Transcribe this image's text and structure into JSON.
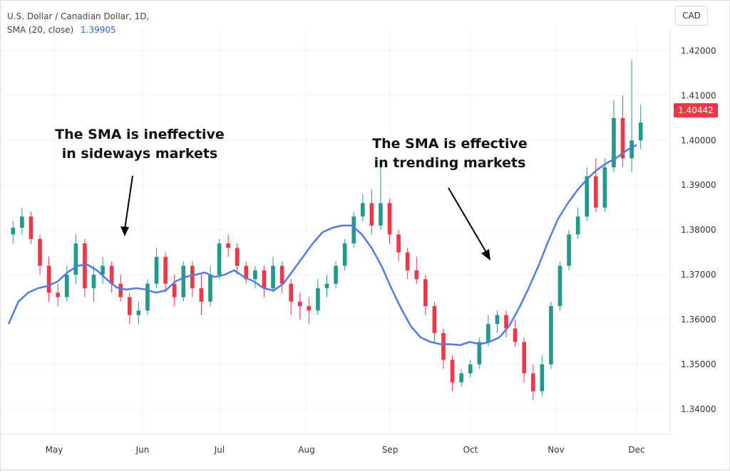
{
  "header": {
    "symbol_line": "U.S. Dollar / Canadian Dollar, 1D,",
    "indicator_label": "SMA (20, close)",
    "indicator_value": "1.39905"
  },
  "currency_button": "CAD",
  "last_price_badge": "1.40442",
  "annotations": {
    "left": [
      "The SMA is ineffective",
      "in sideways markets"
    ],
    "right": [
      "The SMA is effective",
      "in trending markets"
    ]
  },
  "colors": {
    "up": "#22998a",
    "down": "#f23645",
    "sma": "#4f7ce9",
    "grid": "#f0f2f5",
    "axis_text": "#333333"
  },
  "chart_data": {
    "type": "candlestick",
    "title": "U.S. Dollar / Canadian Dollar, 1D",
    "y_axis_label": "CAD",
    "ylim": [
      1.336,
      1.425
    ],
    "y_ticks": [
      "1.42000",
      "1.41000",
      "1.40000",
      "1.39000",
      "1.38000",
      "1.37000",
      "1.36000",
      "1.35000",
      "1.34000"
    ],
    "x_ticks": [
      "May",
      "Jun",
      "Jul",
      "Aug",
      "Sep",
      "Oct",
      "Nov",
      "Dec"
    ],
    "last_price": 1.40442,
    "sma": {
      "name": "SMA (20, close)",
      "last_value": 1.39905,
      "values": [
        1.359,
        1.364,
        1.366,
        1.367,
        1.3675,
        1.3685,
        1.3705,
        1.372,
        1.3723,
        1.371,
        1.369,
        1.3672,
        1.3667,
        1.367,
        1.3667,
        1.366,
        1.3665,
        1.3685,
        1.3695,
        1.37,
        1.3705,
        1.3695,
        1.37,
        1.371,
        1.3695,
        1.3685,
        1.367,
        1.3665,
        1.368,
        1.371,
        1.374,
        1.377,
        1.3795,
        1.3805,
        1.381,
        1.381,
        1.379,
        1.376,
        1.372,
        1.367,
        1.3625,
        1.3585,
        1.356,
        1.355,
        1.3545,
        1.3545,
        1.3543,
        1.355,
        1.3545,
        1.355,
        1.356,
        1.3585,
        1.3625,
        1.367,
        1.372,
        1.3775,
        1.3825,
        1.386,
        1.389,
        1.3915,
        1.3935,
        1.395,
        1.3962,
        1.3978,
        1.399
      ]
    },
    "candles": [
      [
        1.379,
        1.382,
        1.377,
        1.3805
      ],
      [
        1.3805,
        1.385,
        1.379,
        1.383
      ],
      [
        1.383,
        1.384,
        1.377,
        1.378
      ],
      [
        1.378,
        1.379,
        1.37,
        1.372
      ],
      [
        1.372,
        1.374,
        1.364,
        1.366
      ],
      [
        1.366,
        1.368,
        1.363,
        1.365
      ],
      [
        1.365,
        1.372,
        1.364,
        1.37
      ],
      [
        1.37,
        1.379,
        1.368,
        1.377
      ],
      [
        1.377,
        1.378,
        1.365,
        1.367
      ],
      [
        1.367,
        1.372,
        1.364,
        1.37
      ],
      [
        1.37,
        1.374,
        1.368,
        1.372
      ],
      [
        1.372,
        1.373,
        1.366,
        1.368
      ],
      [
        1.368,
        1.37,
        1.364,
        1.365
      ],
      [
        1.365,
        1.366,
        1.359,
        1.361
      ],
      [
        1.361,
        1.364,
        1.359,
        1.362
      ],
      [
        1.362,
        1.369,
        1.361,
        1.368
      ],
      [
        1.368,
        1.376,
        1.367,
        1.374
      ],
      [
        1.374,
        1.375,
        1.366,
        1.368
      ],
      [
        1.368,
        1.37,
        1.363,
        1.365
      ],
      [
        1.365,
        1.373,
        1.364,
        1.372
      ],
      [
        1.372,
        1.373,
        1.365,
        1.367
      ],
      [
        1.367,
        1.37,
        1.361,
        1.364
      ],
      [
        1.364,
        1.372,
        1.363,
        1.37
      ],
      [
        1.37,
        1.378,
        1.369,
        1.377
      ],
      [
        1.377,
        1.379,
        1.374,
        1.376
      ],
      [
        1.376,
        1.377,
        1.37,
        1.372
      ],
      [
        1.372,
        1.373,
        1.368,
        1.369
      ],
      [
        1.369,
        1.372,
        1.367,
        1.371
      ],
      [
        1.371,
        1.372,
        1.365,
        1.367
      ],
      [
        1.367,
        1.374,
        1.366,
        1.372
      ],
      [
        1.372,
        1.373,
        1.366,
        1.368
      ],
      [
        1.368,
        1.369,
        1.361,
        1.364
      ],
      [
        1.364,
        1.366,
        1.36,
        1.363
      ],
      [
        1.363,
        1.365,
        1.359,
        1.362
      ],
      [
        1.362,
        1.369,
        1.361,
        1.367
      ],
      [
        1.367,
        1.37,
        1.365,
        1.368
      ],
      [
        1.368,
        1.373,
        1.367,
        1.372
      ],
      [
        1.372,
        1.378,
        1.371,
        1.377
      ],
      [
        1.377,
        1.384,
        1.376,
        1.383
      ],
      [
        1.383,
        1.388,
        1.382,
        1.386
      ],
      [
        1.386,
        1.389,
        1.379,
        1.381
      ],
      [
        1.381,
        1.395,
        1.38,
        1.386
      ],
      [
        1.386,
        1.387,
        1.377,
        1.379
      ],
      [
        1.379,
        1.38,
        1.373,
        1.375
      ],
      [
        1.375,
        1.376,
        1.369,
        1.371
      ],
      [
        1.371,
        1.374,
        1.368,
        1.369
      ],
      [
        1.369,
        1.37,
        1.361,
        1.363
      ],
      [
        1.363,
        1.364,
        1.355,
        1.357
      ],
      [
        1.357,
        1.358,
        1.349,
        1.351
      ],
      [
        1.351,
        1.352,
        1.344,
        1.346
      ],
      [
        1.346,
        1.349,
        1.345,
        1.348
      ],
      [
        1.348,
        1.351,
        1.347,
        1.35
      ],
      [
        1.35,
        1.356,
        1.349,
        1.355
      ],
      [
        1.355,
        1.361,
        1.354,
        1.359
      ],
      [
        1.359,
        1.362,
        1.357,
        1.361
      ],
      [
        1.361,
        1.362,
        1.356,
        1.358
      ],
      [
        1.358,
        1.36,
        1.354,
        1.355
      ],
      [
        1.355,
        1.356,
        1.346,
        1.348
      ],
      [
        1.348,
        1.35,
        1.342,
        1.344
      ],
      [
        1.344,
        1.352,
        1.343,
        1.35
      ],
      [
        1.35,
        1.364,
        1.349,
        1.363
      ],
      [
        1.363,
        1.373,
        1.362,
        1.372
      ],
      [
        1.372,
        1.38,
        1.371,
        1.379
      ],
      [
        1.379,
        1.385,
        1.378,
        1.383
      ],
      [
        1.383,
        1.394,
        1.382,
        1.392
      ],
      [
        1.392,
        1.396,
        1.384,
        1.385
      ],
      [
        1.385,
        1.396,
        1.384,
        1.394
      ],
      [
        1.394,
        1.409,
        1.393,
        1.405
      ],
      [
        1.405,
        1.41,
        1.394,
        1.396
      ],
      [
        1.396,
        1.418,
        1.393,
        1.4
      ],
      [
        1.4,
        1.408,
        1.398,
        1.404
      ]
    ]
  }
}
